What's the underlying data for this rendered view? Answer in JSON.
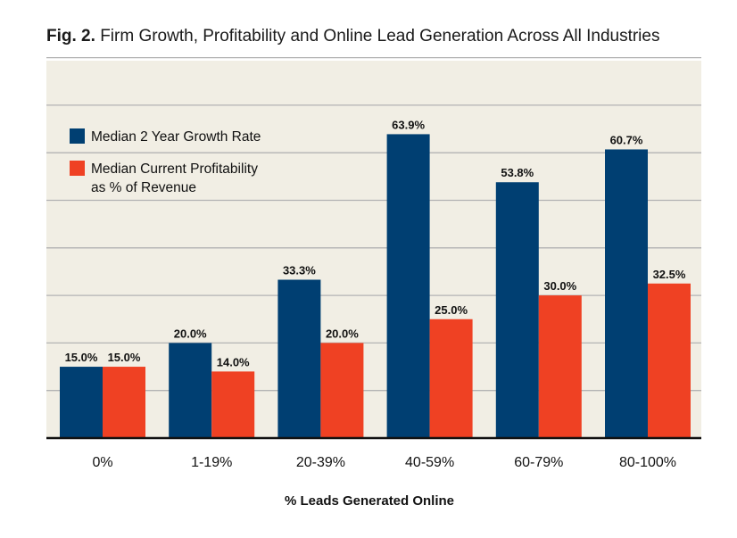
{
  "figure": {
    "label": "Fig. 2.",
    "title": "Firm Growth, Profitability and Online Lead Generation Across All Industries"
  },
  "chart_data": {
    "type": "bar",
    "title": "Fig. 2. Firm Growth, Profitability and Online Lead Generation Across All Industries",
    "xlabel": "% Leads Generated Online",
    "ylabel": "",
    "categories": [
      "0%",
      "1-19%",
      "20-39%",
      "40-59%",
      "60-79%",
      "80-100%"
    ],
    "series": [
      {
        "name": "Median 2 Year Growth Rate",
        "values": [
          15.0,
          20.0,
          33.3,
          63.9,
          53.8,
          60.7
        ],
        "labels": [
          "15.0%",
          "20.0%",
          "33.3%",
          "63.9%",
          "53.8%",
          "60.7%"
        ],
        "color": "#003f72"
      },
      {
        "name": "Median Current Profitability as % of Revenue",
        "legend_lines": [
          "Median Current Profitability",
          "as % of Revenue"
        ],
        "values": [
          15.0,
          14.0,
          20.0,
          25.0,
          30.0,
          32.5
        ],
        "labels": [
          "15.0%",
          "14.0%",
          "20.0%",
          "25.0%",
          "30.0%",
          "32.5%"
        ],
        "color": "#ef4123"
      }
    ],
    "ylim": [
      0,
      80
    ],
    "grid": true,
    "legend_position": "top-left",
    "background_color": "#f1eee4",
    "grid_color": "#b3b3b3"
  }
}
